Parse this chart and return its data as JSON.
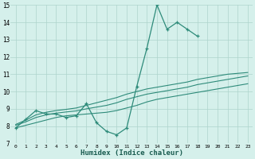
{
  "xlabel": "Humidex (Indice chaleur)",
  "x": [
    0,
    1,
    2,
    3,
    4,
    5,
    6,
    7,
    8,
    9,
    10,
    11,
    12,
    13,
    14,
    15,
    16,
    17,
    18,
    19,
    20,
    21,
    22,
    23
  ],
  "y_main": [
    7.9,
    8.4,
    8.9,
    8.7,
    8.7,
    8.5,
    8.6,
    9.3,
    8.2,
    7.7,
    7.5,
    7.9,
    10.3,
    12.5,
    15.0,
    13.6,
    14.0,
    13.6,
    13.2,
    null,
    null,
    null,
    null,
    null
  ],
  "y_trend_low": [
    7.9,
    8.05,
    8.2,
    8.35,
    8.5,
    8.6,
    8.65,
    8.7,
    8.75,
    8.8,
    8.9,
    9.05,
    9.2,
    9.4,
    9.55,
    9.65,
    9.75,
    9.85,
    9.95,
    10.05,
    10.15,
    10.25,
    10.35,
    10.45
  ],
  "y_trend_mid": [
    8.05,
    8.25,
    8.5,
    8.65,
    8.75,
    8.82,
    8.88,
    9.0,
    9.1,
    9.2,
    9.35,
    9.55,
    9.7,
    9.85,
    9.95,
    10.05,
    10.15,
    10.25,
    10.4,
    10.5,
    10.6,
    10.7,
    10.8,
    10.9
  ],
  "y_trend_high": [
    8.1,
    8.35,
    8.65,
    8.8,
    8.9,
    8.97,
    9.05,
    9.2,
    9.35,
    9.5,
    9.65,
    9.85,
    10.0,
    10.15,
    10.25,
    10.35,
    10.45,
    10.55,
    10.7,
    10.8,
    10.9,
    11.0,
    11.05,
    11.1
  ],
  "ylim": [
    7,
    15
  ],
  "xlim": [
    -0.5,
    23.5
  ],
  "yticks": [
    7,
    8,
    9,
    10,
    11,
    12,
    13,
    14,
    15
  ],
  "xticks": [
    0,
    1,
    2,
    3,
    4,
    5,
    6,
    7,
    8,
    9,
    10,
    11,
    12,
    13,
    14,
    15,
    16,
    17,
    18,
    19,
    20,
    21,
    22,
    23
  ],
  "line_color": "#2e8b7a",
  "bg_color": "#d5f0eb",
  "grid_color": "#aed4cc"
}
